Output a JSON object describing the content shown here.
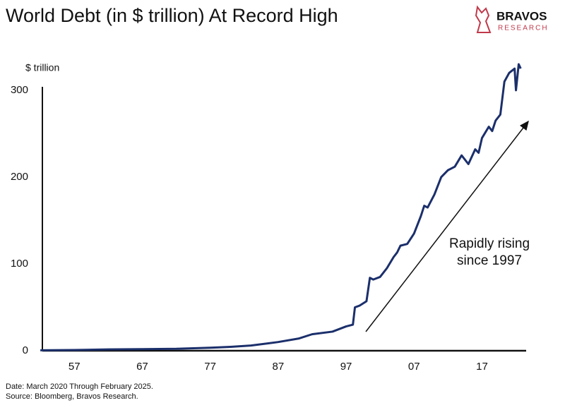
{
  "chart_data": {
    "type": "line",
    "title": "World Debt (in $ trillion) At Record High",
    "brand": {
      "name": "BRAVOS",
      "tagline": "RESEARCH"
    },
    "y_label": "$ trillion",
    "annotation": [
      "Rapidly rising",
      "since 1997"
    ],
    "notes": [
      "Date: March 2020 Through February 2025.",
      "Source: Bloomberg, Bravos Research."
    ],
    "x": [
      1952,
      1957,
      1962,
      1967,
      1972,
      1977,
      1980,
      1983,
      1987,
      1990,
      1992,
      1995,
      1997,
      1998,
      1998.3,
      1999,
      2000,
      2000.5,
      2001,
      2002,
      2003,
      2004,
      2004.5,
      2005,
      2006,
      2007,
      2008,
      2008.5,
      2009,
      2010,
      2011,
      2012,
      2013,
      2014,
      2015,
      2016,
      2016.5,
      2017,
      2018,
      2018.5,
      2019,
      2019.7,
      2020.3,
      2021,
      2021.8,
      2022,
      2022.4,
      2022.7
    ],
    "series": [
      {
        "name": "World Debt",
        "color": "#1b2f6b",
        "values": [
          0.5,
          0.8,
          1.5,
          1.8,
          2.2,
          3.5,
          4.5,
          6,
          10,
          14,
          19,
          22,
          28,
          30,
          50,
          52,
          57,
          84,
          82,
          85,
          95,
          108,
          113,
          121,
          123,
          135,
          155,
          167,
          165,
          180,
          200,
          208,
          212,
          225,
          215,
          232,
          228,
          245,
          258,
          253,
          265,
          272,
          310,
          320,
          325,
          300,
          330,
          325
        ]
      }
    ],
    "xlim": [
      1952.3,
      2023.5
    ],
    "ylim": [
      0,
      304
    ],
    "xticks": [
      {
        "value": 1957,
        "label": "57"
      },
      {
        "value": 1967,
        "label": "67"
      },
      {
        "value": 1977,
        "label": "77"
      },
      {
        "value": 1987,
        "label": "87"
      },
      {
        "value": 1997,
        "label": "97"
      },
      {
        "value": 2007,
        "label": "07"
      },
      {
        "value": 2017,
        "label": "17"
      }
    ],
    "yticks": [
      0,
      100,
      200,
      300
    ]
  }
}
